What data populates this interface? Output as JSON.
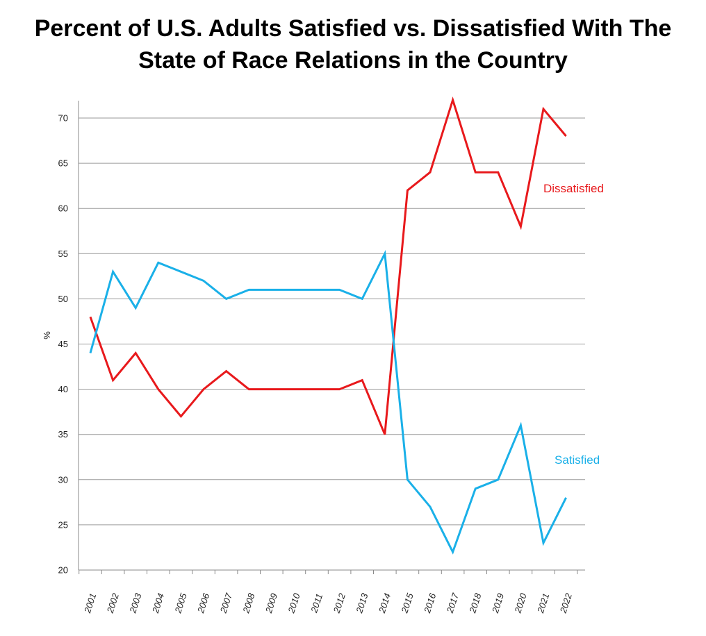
{
  "chart_data": {
    "type": "line",
    "title": "Percent of U.S. Adults Satisfied vs. Dissatisfied With The State of Race Relations in the Country",
    "title_lines": [
      "Percent of U.S. Adults Satisfied vs. Dissatisfied With The",
      "State of Race Relations in the Country"
    ],
    "xlabel": "",
    "ylabel": "%",
    "ylim": [
      20,
      72
    ],
    "yticks": [
      20,
      25,
      30,
      35,
      40,
      45,
      50,
      55,
      60,
      65,
      70
    ],
    "grid": true,
    "legend": "inline labels",
    "x": [
      "2001",
      "2002",
      "2003",
      "2004",
      "2005",
      "2006",
      "2007",
      "2008",
      "2009",
      "2010",
      "2011",
      "2012",
      "2013",
      "2014",
      "2015",
      "2016",
      "2017",
      "2018",
      "2019",
      "2020",
      "2021",
      "2022"
    ],
    "series": [
      {
        "name": "Dissatisfied",
        "color": "#e8191c",
        "values": [
          48,
          41,
          44,
          40,
          37,
          40,
          42,
          40,
          40,
          40,
          40,
          40,
          41,
          35,
          62,
          64,
          72,
          64,
          64,
          58,
          71,
          68
        ]
      },
      {
        "name": "Satisfied",
        "color": "#1ab0e8",
        "values": [
          44,
          53,
          49,
          54,
          53,
          52,
          50,
          51,
          51,
          51,
          51,
          51,
          50,
          55,
          30,
          27,
          22,
          29,
          30,
          36,
          23,
          28
        ]
      }
    ]
  }
}
